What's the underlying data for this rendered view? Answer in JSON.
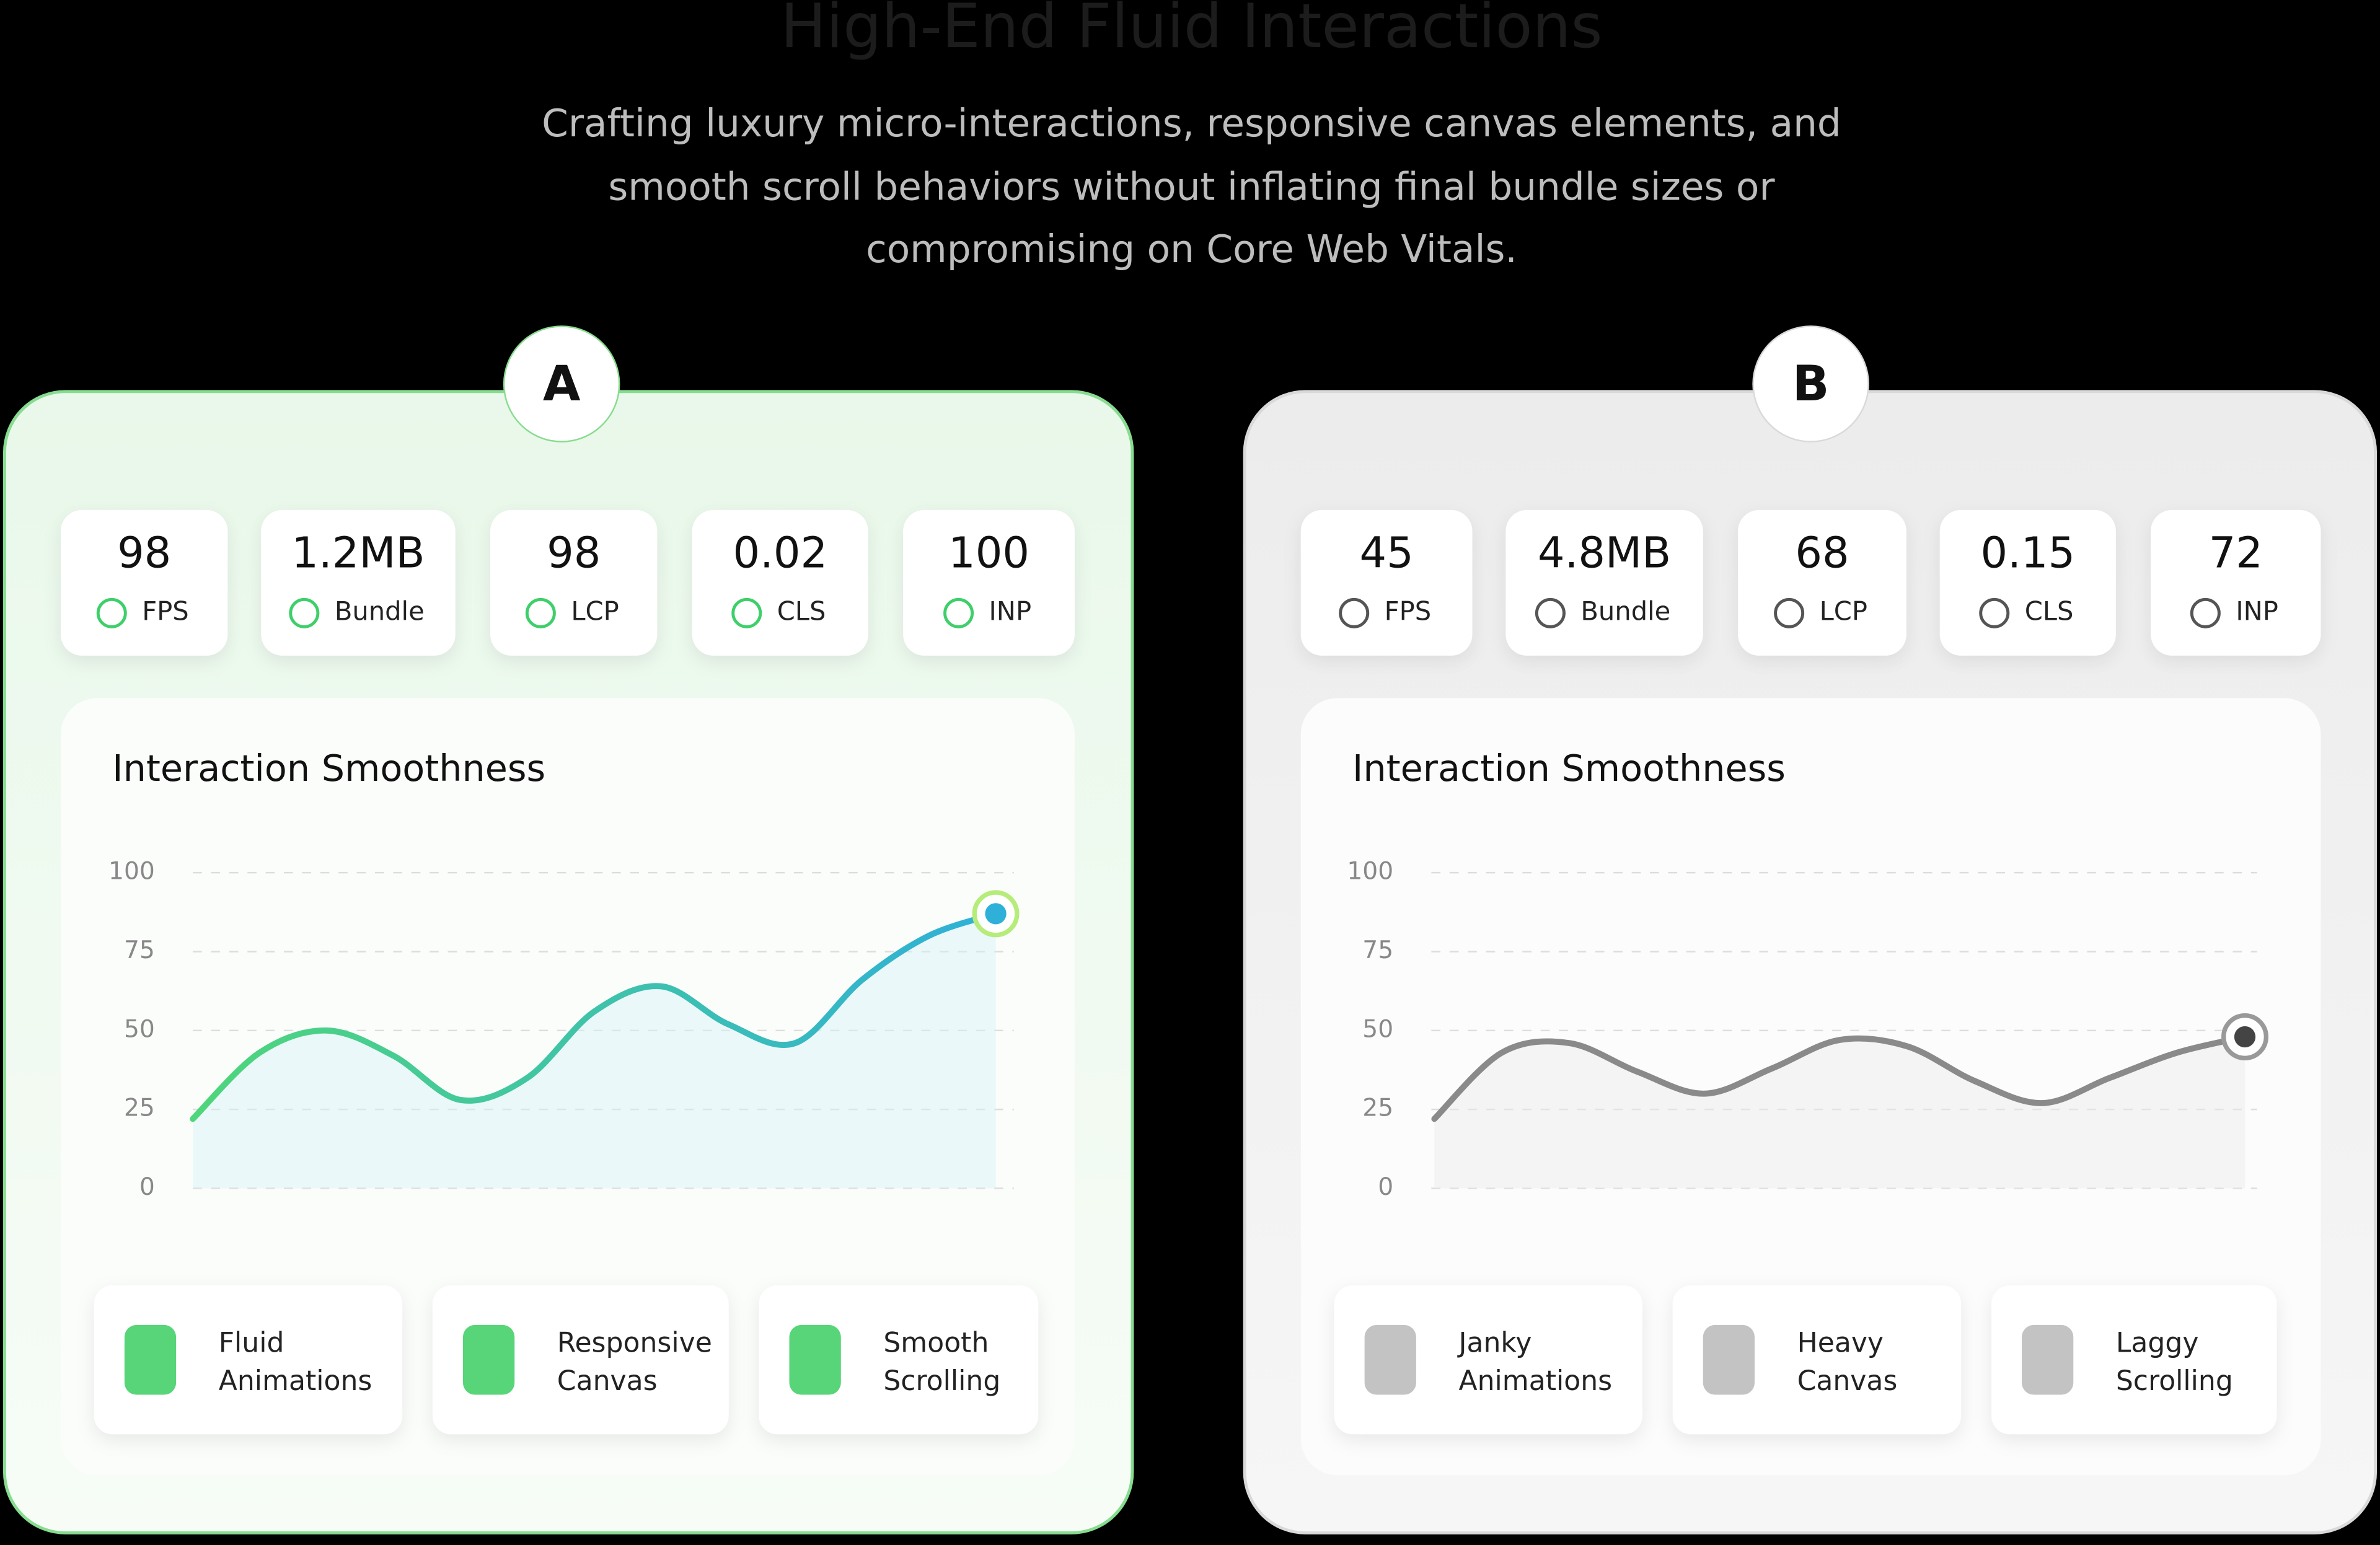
{
  "header": {
    "title": "High-End Fluid Interactions",
    "subtitle": [
      "Crafting luxury micro-interactions, responsive canvas elements, and",
      "smooth scroll behaviors without inflating final bundle sizes or",
      "compromising on Core Web Vitals."
    ]
  },
  "panels": [
    {
      "label": "A",
      "metrics": [
        {
          "value": "98",
          "label": "FPS"
        },
        {
          "value": "1.2MB",
          "label": "Bundle"
        },
        {
          "value": "98",
          "label": "LCP"
        },
        {
          "value": "0.02",
          "label": "CLS"
        },
        {
          "value": "100",
          "label": "INP"
        }
      ],
      "chart_data": {
        "type": "line",
        "title": "Interaction Smoothness",
        "ylim": [
          0,
          100
        ],
        "yticks": [
          0,
          25,
          50,
          75,
          100
        ],
        "grid": true,
        "categories": [
          null,
          null,
          null,
          null,
          null,
          null,
          null,
          null,
          null,
          null,
          null,
          null,
          null
        ],
        "series": [
          {
            "color": "#4fd67a",
            "color_end": "#2fb0d8",
            "values": [
              22,
              43,
              50,
              42,
              28,
              35,
              56,
              64,
              52,
              46,
              66,
              80,
              87
            ]
          }
        ]
      },
      "features": [
        {
          "lines": [
            "Fluid",
            "Animations"
          ]
        },
        {
          "lines": [
            "Responsive",
            "Canvas"
          ]
        },
        {
          "lines": [
            "Smooth",
            "Scrolling"
          ]
        }
      ]
    },
    {
      "label": "B",
      "metrics": [
        {
          "value": "45",
          "label": "FPS"
        },
        {
          "value": "4.8MB",
          "label": "Bundle"
        },
        {
          "value": "68",
          "label": "LCP"
        },
        {
          "value": "0.15",
          "label": "CLS"
        },
        {
          "value": "72",
          "label": "INP"
        }
      ],
      "chart_data": {
        "type": "line",
        "title": "Interaction Smoothness",
        "ylim": [
          0,
          100
        ],
        "yticks": [
          0,
          25,
          50,
          75,
          100
        ],
        "grid": true,
        "categories": [
          null,
          null,
          null,
          null,
          null,
          null,
          null,
          null,
          null,
          null,
          null,
          null,
          null
        ],
        "series": [
          {
            "color": "#8a8a8a",
            "color_end": "#8a8a8a",
            "values": [
              22,
              43,
              46,
              37,
              30,
              38,
              47,
              45,
              34,
              27,
              35,
              43,
              48
            ]
          }
        ]
      },
      "features": [
        {
          "lines": [
            "Janky",
            "Animations"
          ]
        },
        {
          "lines": [
            "Heavy",
            "Canvas"
          ]
        },
        {
          "lines": [
            "Laggy",
            "Scrolling"
          ]
        }
      ]
    }
  ]
}
